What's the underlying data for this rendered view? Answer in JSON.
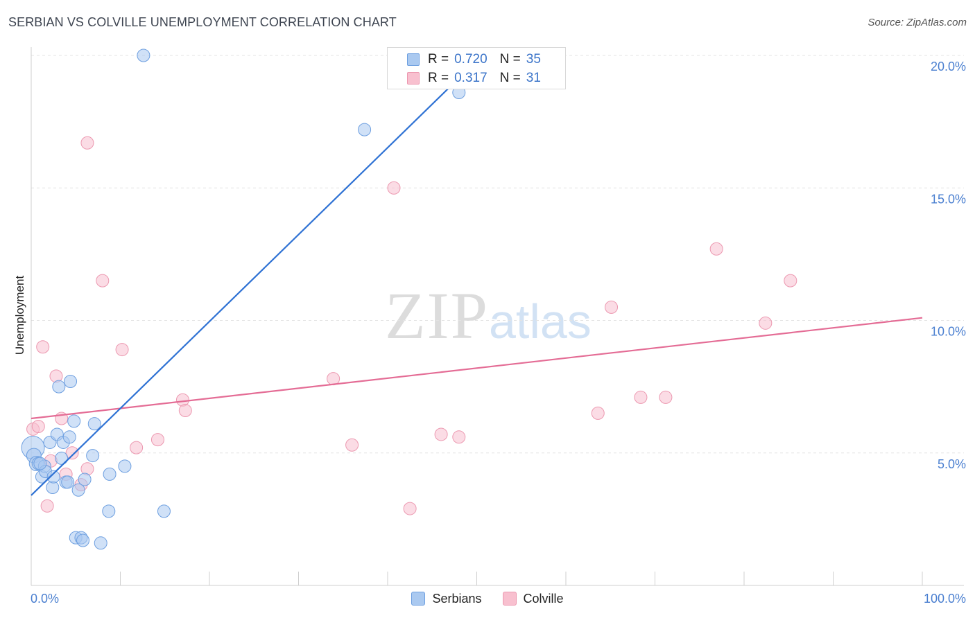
{
  "header": {
    "title": "SERBIAN VS COLVILLE UNEMPLOYMENT CORRELATION CHART",
    "source": "Source: ZipAtlas.com"
  },
  "watermark": {
    "zip": "ZIP",
    "atlas": "atlas"
  },
  "legend": {
    "serbians": {
      "r_label": "R =",
      "r_value": "0.720",
      "n_label": "N =",
      "n_value": "35"
    },
    "colville": {
      "r_label": "R =",
      "r_value": "0.317",
      "n_label": "N =",
      "n_value": "31"
    },
    "serbians_name": "Serbians",
    "colville_name": "Colville"
  },
  "colors": {
    "serbian_fill": "#aac9f0",
    "serbian_stroke": "#6d9fe0",
    "serbian_line": "#2f72d4",
    "colville_fill": "#f8c0cf",
    "colville_stroke": "#ec98b0",
    "colville_line": "#e46c95",
    "tick_color": "#4a7fd0"
  },
  "chart_data": {
    "type": "scatter",
    "title": "SERBIAN VS COLVILLE UNEMPLOYMENT CORRELATION CHART",
    "xlabel": "",
    "ylabel": "Unemployment",
    "xlim": [
      0,
      100
    ],
    "ylim": [
      0,
      20
    ],
    "x_tick_labels": [
      "0.0%",
      "100.0%"
    ],
    "y_ticks": [
      5,
      10,
      15,
      20
    ],
    "y_tick_labels": [
      "5.0%",
      "10.0%",
      "15.0%",
      "20.0%"
    ],
    "grid": true,
    "legend_position": "top-center",
    "series": [
      {
        "name": "Serbians",
        "points": [
          [
            0.2,
            5.2,
            22
          ],
          [
            0.3,
            4.9,
            14
          ],
          [
            0.6,
            4.6,
            14
          ],
          [
            0.8,
            4.6,
            12
          ],
          [
            1.2,
            4.1,
            12
          ],
          [
            1.5,
            4.5,
            12
          ],
          [
            1.6,
            4.3,
            12
          ],
          [
            2.1,
            5.4,
            12
          ],
          [
            2.4,
            3.7,
            12
          ],
          [
            2.5,
            4.1,
            12
          ],
          [
            2.9,
            5.7,
            12
          ],
          [
            3.1,
            7.5,
            12
          ],
          [
            3.4,
            4.8,
            12
          ],
          [
            3.6,
            5.4,
            12
          ],
          [
            3.9,
            3.9,
            12
          ],
          [
            4.1,
            3.9,
            12
          ],
          [
            4.3,
            5.6,
            12
          ],
          [
            4.4,
            7.7,
            12
          ],
          [
            4.8,
            6.2,
            12
          ],
          [
            5.0,
            1.8,
            12
          ],
          [
            5.3,
            3.6,
            12
          ],
          [
            5.6,
            1.8,
            12
          ],
          [
            5.8,
            1.7,
            12
          ],
          [
            6.0,
            4.0,
            12
          ],
          [
            6.9,
            4.9,
            12
          ],
          [
            7.1,
            6.1,
            12
          ],
          [
            7.8,
            1.6,
            12
          ],
          [
            8.7,
            2.8,
            12
          ],
          [
            8.8,
            4.2,
            12
          ],
          [
            10.5,
            4.5,
            12
          ],
          [
            12.6,
            20.0,
            12
          ],
          [
            14.9,
            2.8,
            12
          ],
          [
            37.4,
            17.2,
            12
          ],
          [
            48.0,
            18.6,
            12
          ],
          [
            1.0,
            4.6,
            12
          ]
        ],
        "trendline": {
          "x": [
            0,
            50
          ],
          "y": [
            3.4,
            19.8
          ]
        }
      },
      {
        "name": "Colville",
        "points": [
          [
            0.2,
            5.9,
            12
          ],
          [
            0.8,
            6.0,
            12
          ],
          [
            1.3,
            9.0,
            12
          ],
          [
            1.8,
            3.0,
            12
          ],
          [
            2.2,
            4.7,
            12
          ],
          [
            2.8,
            7.9,
            12
          ],
          [
            3.4,
            6.3,
            12
          ],
          [
            3.9,
            4.2,
            12
          ],
          [
            4.6,
            5.0,
            12
          ],
          [
            5.6,
            3.8,
            12
          ],
          [
            6.3,
            4.4,
            12
          ],
          [
            6.3,
            16.7,
            12
          ],
          [
            8.0,
            11.5,
            12
          ],
          [
            10.2,
            8.9,
            12
          ],
          [
            11.8,
            5.2,
            12
          ],
          [
            14.2,
            5.5,
            12
          ],
          [
            17.0,
            7.0,
            12
          ],
          [
            17.3,
            6.6,
            12
          ],
          [
            33.9,
            7.8,
            12
          ],
          [
            36.0,
            5.3,
            12
          ],
          [
            40.7,
            15.0,
            12
          ],
          [
            42.5,
            2.9,
            12
          ],
          [
            46.0,
            5.7,
            12
          ],
          [
            48.0,
            5.6,
            12
          ],
          [
            63.6,
            6.5,
            12
          ],
          [
            65.1,
            10.5,
            12
          ],
          [
            68.4,
            7.1,
            12
          ],
          [
            71.2,
            7.1,
            12
          ],
          [
            76.9,
            12.7,
            12
          ],
          [
            82.4,
            9.9,
            12
          ],
          [
            85.2,
            11.5,
            12
          ]
        ],
        "trendline": {
          "x": [
            0,
            100
          ],
          "y": [
            6.3,
            10.1
          ]
        }
      }
    ]
  }
}
